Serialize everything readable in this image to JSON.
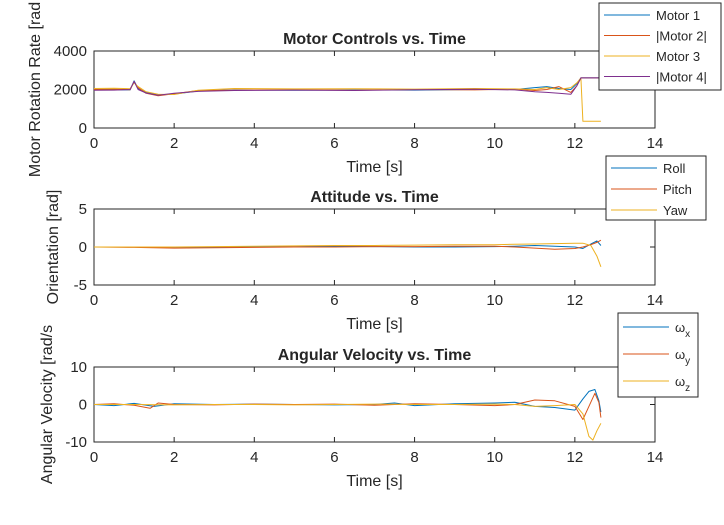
{
  "chart_data": [
    {
      "type": "line",
      "title": "Motor Controls vs. Time",
      "xlabel": "Time [s]",
      "ylabel": "Motor Rotation Rate [rad",
      "xlim": [
        0,
        14
      ],
      "ylim": [
        0,
        4000
      ],
      "xticks": [
        "0",
        "2",
        "4",
        "6",
        "8",
        "10",
        "12",
        "14"
      ],
      "yticks": [
        "0",
        "2000",
        "4000"
      ],
      "legend_position": "top-right",
      "grid": false,
      "series": [
        {
          "name": "Motor 1",
          "color": "#0072BD",
          "x": [
            0,
            0.5,
            0.9,
            1.0,
            1.1,
            1.3,
            1.6,
            2.0,
            2.6,
            3.5,
            5,
            6.5,
            8,
            9.5,
            10.5,
            11.0,
            11.3,
            11.6,
            11.9,
            12.05,
            12.15,
            12.3,
            12.65
          ],
          "y": [
            1980,
            1990,
            1980,
            2450,
            2050,
            1850,
            1720,
            1760,
            1920,
            1980,
            1960,
            1980,
            1970,
            2000,
            2000,
            2100,
            2150,
            2050,
            2000,
            2300,
            2600,
            2600,
            2600
          ]
        },
        {
          "name": "|Motor 2|",
          "color": "#D95319",
          "x": [
            0,
            0.5,
            0.9,
            1.0,
            1.1,
            1.3,
            1.6,
            2.0,
            2.6,
            3.5,
            5,
            6.5,
            8,
            9.5,
            10.5,
            11.0,
            11.3,
            11.6,
            11.9,
            12.05,
            12.15,
            12.3,
            12.65
          ],
          "y": [
            2000,
            2020,
            1990,
            2400,
            2100,
            1800,
            1680,
            1780,
            1950,
            1970,
            1990,
            1960,
            2000,
            1980,
            2020,
            1950,
            2000,
            2150,
            1850,
            2200,
            2600,
            2600,
            2600
          ]
        },
        {
          "name": "Motor 3",
          "color": "#EDB120",
          "x": [
            0,
            0.5,
            0.9,
            1.0,
            1.1,
            1.3,
            1.6,
            2.0,
            2.6,
            3.5,
            5,
            6.5,
            8,
            9.5,
            10.5,
            11.0,
            11.3,
            11.6,
            11.9,
            12.05,
            12.15,
            12.2,
            12.3,
            12.65
          ],
          "y": [
            2050,
            2060,
            2040,
            2350,
            2150,
            1880,
            1750,
            1740,
            1960,
            2050,
            2030,
            2040,
            2020,
            2050,
            2030,
            2000,
            2100,
            2000,
            2100,
            2350,
            2600,
            350,
            350,
            350
          ]
        },
        {
          "name": "|Motor 4|",
          "color": "#7E2F8E",
          "x": [
            0,
            0.5,
            0.9,
            1.0,
            1.1,
            1.3,
            1.6,
            2.0,
            2.6,
            3.5,
            5,
            6.5,
            8,
            9.5,
            10.5,
            11.0,
            11.3,
            11.6,
            11.9,
            12.05,
            12.15,
            12.3,
            12.65
          ],
          "y": [
            1960,
            1970,
            2000,
            2420,
            2000,
            1820,
            1700,
            1800,
            1900,
            1950,
            1970,
            1950,
            1990,
            2010,
            1980,
            1880,
            1850,
            1800,
            1750,
            2200,
            2600,
            2600,
            2600
          ]
        }
      ]
    },
    {
      "type": "line",
      "title": "Attitude vs. Time",
      "xlabel": "Time [s]",
      "ylabel": "Orientation [rad]",
      "xlim": [
        0,
        14
      ],
      "ylim": [
        -5,
        5
      ],
      "xticks": [
        "0",
        "2",
        "4",
        "6",
        "8",
        "10",
        "12",
        "14"
      ],
      "yticks": [
        "-5",
        "0",
        "5"
      ],
      "legend_position": "top-right",
      "grid": false,
      "series": [
        {
          "name": "Roll",
          "color": "#0072BD",
          "x": [
            0,
            1,
            2,
            3,
            4,
            5,
            6,
            7,
            8,
            9,
            10,
            10.5,
            11,
            11.5,
            12,
            12.2,
            12.4,
            12.55,
            12.65
          ],
          "y": [
            0,
            0,
            -0.05,
            0,
            0.05,
            0.05,
            0.1,
            0.05,
            0,
            0,
            0.05,
            0.1,
            0.2,
            0.1,
            0,
            -0.2,
            0.4,
            0.8,
            0.2
          ]
        },
        {
          "name": "Pitch",
          "color": "#D95319",
          "x": [
            0,
            1,
            2,
            3,
            4,
            5,
            6,
            7,
            8,
            9,
            10,
            10.5,
            11,
            11.5,
            12,
            12.2,
            12.4,
            12.55,
            12.65
          ],
          "y": [
            0,
            -0.05,
            -0.15,
            -0.1,
            -0.05,
            0,
            0,
            0.05,
            0.05,
            0.1,
            0.1,
            0,
            -0.15,
            -0.3,
            -0.2,
            0,
            0.3,
            0.6,
            0.9
          ]
        },
        {
          "name": "Yaw",
          "color": "#EDB120",
          "x": [
            0,
            1,
            2,
            3,
            4,
            5,
            6,
            7,
            8,
            9,
            10,
            10.5,
            11,
            11.5,
            12,
            12.2,
            12.4,
            12.55,
            12.65
          ],
          "y": [
            0,
            0,
            0,
            0.05,
            0.1,
            0.15,
            0.2,
            0.2,
            0.25,
            0.3,
            0.3,
            0.35,
            0.4,
            0.45,
            0.5,
            0.5,
            0.2,
            -1.2,
            -2.6
          ]
        }
      ]
    },
    {
      "type": "line",
      "title": "Angular Velocity vs. Time",
      "xlabel": "Time [s]",
      "ylabel": "Angular Velocity [rad/s",
      "xlim": [
        0,
        14
      ],
      "ylim": [
        -10,
        10
      ],
      "xticks": [
        "0",
        "2",
        "4",
        "6",
        "8",
        "10",
        "12",
        "14"
      ],
      "yticks": [
        "-10",
        "0",
        "10"
      ],
      "legend_position": "top-right",
      "grid": false,
      "series": [
        {
          "name": "ωx",
          "color": "#0072BD",
          "x": [
            0,
            0.5,
            1,
            1.5,
            2,
            3,
            4,
            5,
            6,
            7,
            7.5,
            8,
            9,
            10,
            10.5,
            11,
            11.5,
            12,
            12.2,
            12.35,
            12.5,
            12.6,
            12.65
          ],
          "y": [
            0,
            -0.3,
            0.3,
            -0.5,
            0.2,
            0,
            0.1,
            0,
            -0.1,
            0,
            0.4,
            -0.3,
            0.2,
            0.4,
            0.6,
            -0.5,
            -0.8,
            -1.5,
            1.5,
            3.5,
            4.0,
            1.0,
            -2.0
          ]
        },
        {
          "name": "ωy",
          "color": "#D95319",
          "x": [
            0,
            0.5,
            1,
            1.4,
            1.6,
            2,
            3,
            4,
            5,
            6,
            7,
            8,
            9,
            10,
            10.5,
            11,
            11.5,
            12,
            12.2,
            12.35,
            12.5,
            12.6,
            12.65
          ],
          "y": [
            0,
            0.2,
            -0.2,
            -1.0,
            0.4,
            0,
            -0.1,
            0.1,
            0,
            0.1,
            -0.2,
            0.2,
            0,
            -0.3,
            0,
            1.2,
            1.0,
            -0.5,
            -4.0,
            -0.5,
            3.0,
            0.5,
            -3.5
          ]
        },
        {
          "name": "ωz",
          "color": "#EDB120",
          "x": [
            0,
            1,
            2,
            3,
            4,
            5,
            6,
            7,
            8,
            9,
            10,
            10.5,
            11,
            11.5,
            12,
            12.2,
            12.35,
            12.45,
            12.55,
            12.65
          ],
          "y": [
            0,
            0,
            -0.1,
            0,
            0,
            -0.1,
            0,
            0.1,
            0,
            0,
            0.1,
            0,
            -0.5,
            -0.3,
            0,
            -2.5,
            -8.5,
            -9.5,
            -7.0,
            -5.0
          ]
        }
      ]
    }
  ]
}
